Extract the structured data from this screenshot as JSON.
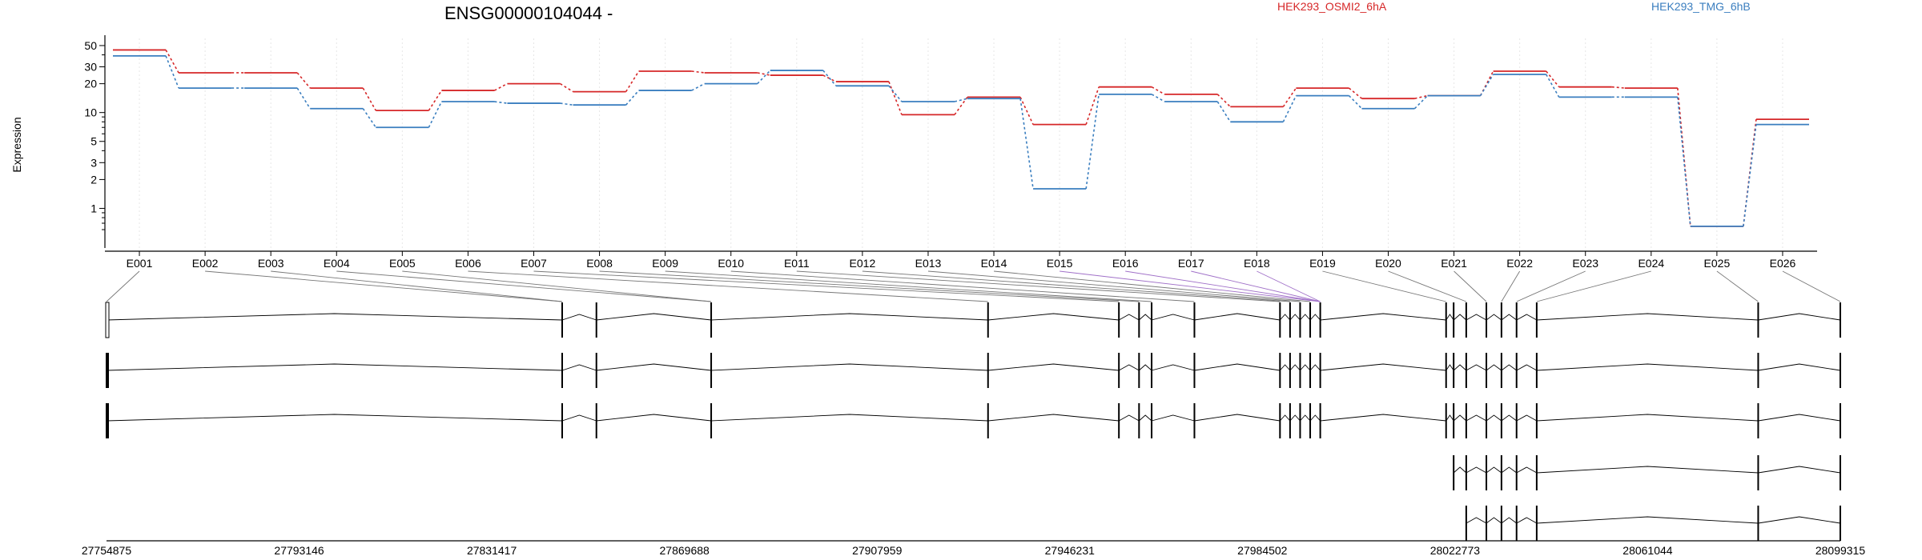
{
  "title": "ENSG00000104044 -",
  "ylabel": "Expression",
  "chart_data": {
    "type": "line",
    "title": "ENSG00000104044 -",
    "xlabel": "",
    "ylabel": "Expression",
    "yscale": "log",
    "ylim": [
      0.45,
      55
    ],
    "yticks": [
      1,
      2,
      3,
      5,
      10,
      20,
      30,
      50
    ],
    "grid": "vertical dotted lines at exon bins",
    "legend_placement": "top-right",
    "categories": [
      "E001",
      "E002",
      "E003",
      "E004",
      "E005",
      "E006",
      "E007",
      "E008",
      "E009",
      "E010",
      "E011",
      "E012",
      "E013",
      "E014",
      "E015",
      "E016",
      "E017",
      "E018",
      "E019",
      "E020",
      "E021",
      "E022",
      "E023",
      "E024",
      "E025",
      "E026"
    ],
    "series": [
      {
        "name": "HEK293_OSMI2_6hA",
        "color": "#d62728",
        "values": [
          45,
          26,
          26,
          18,
          10.5,
          17,
          20,
          16.5,
          27,
          26,
          24.5,
          21,
          9.5,
          14.5,
          7.5,
          18.5,
          15.5,
          11.5,
          18,
          14,
          15,
          27,
          18.5,
          18,
          0.65,
          8.5
        ]
      },
      {
        "name": "HEK293_TMG_6hB",
        "color": "#3a7ebf",
        "values": [
          39,
          18,
          18,
          11,
          7,
          13,
          12.5,
          12,
          17,
          20,
          27.5,
          19,
          13,
          14,
          1.6,
          15.5,
          13,
          8,
          15,
          11,
          15,
          25,
          14.5,
          14.5,
          0.65,
          7.5
        ]
      }
    ]
  },
  "legend": [
    {
      "label": "HEK293_OSMI2_6hA",
      "color": "#d62728"
    },
    {
      "label": "HEK293_TMG_6hB",
      "color": "#3a7ebf"
    }
  ],
  "genomic_axis": {
    "ticks": [
      "27754875",
      "27793146",
      "27831417",
      "27869688",
      "27907959",
      "27946231",
      "27984502",
      "28022773",
      "28061044",
      "28099315"
    ],
    "start": 27754875,
    "end": 28099315
  },
  "gene_model": {
    "exon_positions": [
      27754875,
      27845400,
      27852200,
      27875000,
      27930000,
      27956000,
      27960000,
      27962500,
      27971000,
      27988000,
      27990000,
      27992000,
      27994000,
      27996000,
      28021000,
      28022500,
      28025000,
      28029000,
      28032000,
      28035000,
      28039000,
      28083000,
      28099315
    ],
    "bin_exons": [
      0,
      1,
      1,
      3,
      3,
      4,
      5,
      6,
      7,
      8,
      9,
      10,
      11,
      12,
      13,
      13,
      13,
      13,
      14,
      16,
      17,
      18,
      19,
      20,
      21,
      22
    ],
    "transcripts": [
      {
        "exons": [
          0,
          1,
          2,
          3,
          4,
          5,
          6,
          7,
          8,
          9,
          10,
          11,
          12,
          13,
          14,
          15,
          16,
          17,
          18,
          19,
          20,
          21,
          22
        ],
        "first_exon": "open"
      },
      {
        "exons": [
          0,
          1,
          2,
          3,
          4,
          5,
          6,
          7,
          8,
          9,
          10,
          11,
          12,
          13,
          14,
          15,
          16,
          17,
          18,
          19,
          20,
          21,
          22
        ],
        "first_exon": "thick"
      },
      {
        "exons": [
          0,
          1,
          2,
          3,
          4,
          5,
          6,
          7,
          8,
          9,
          10,
          11,
          12,
          13,
          14,
          15,
          16,
          17,
          18,
          19,
          20,
          21,
          22
        ],
        "first_exon": "thick"
      },
      {
        "exons": [
          15,
          16,
          17,
          18,
          19,
          20,
          21,
          22
        ],
        "first_exon": "thin"
      },
      {
        "exons": [
          16,
          17,
          18,
          19,
          20,
          21,
          22
        ],
        "first_exon": "thin"
      }
    ]
  }
}
